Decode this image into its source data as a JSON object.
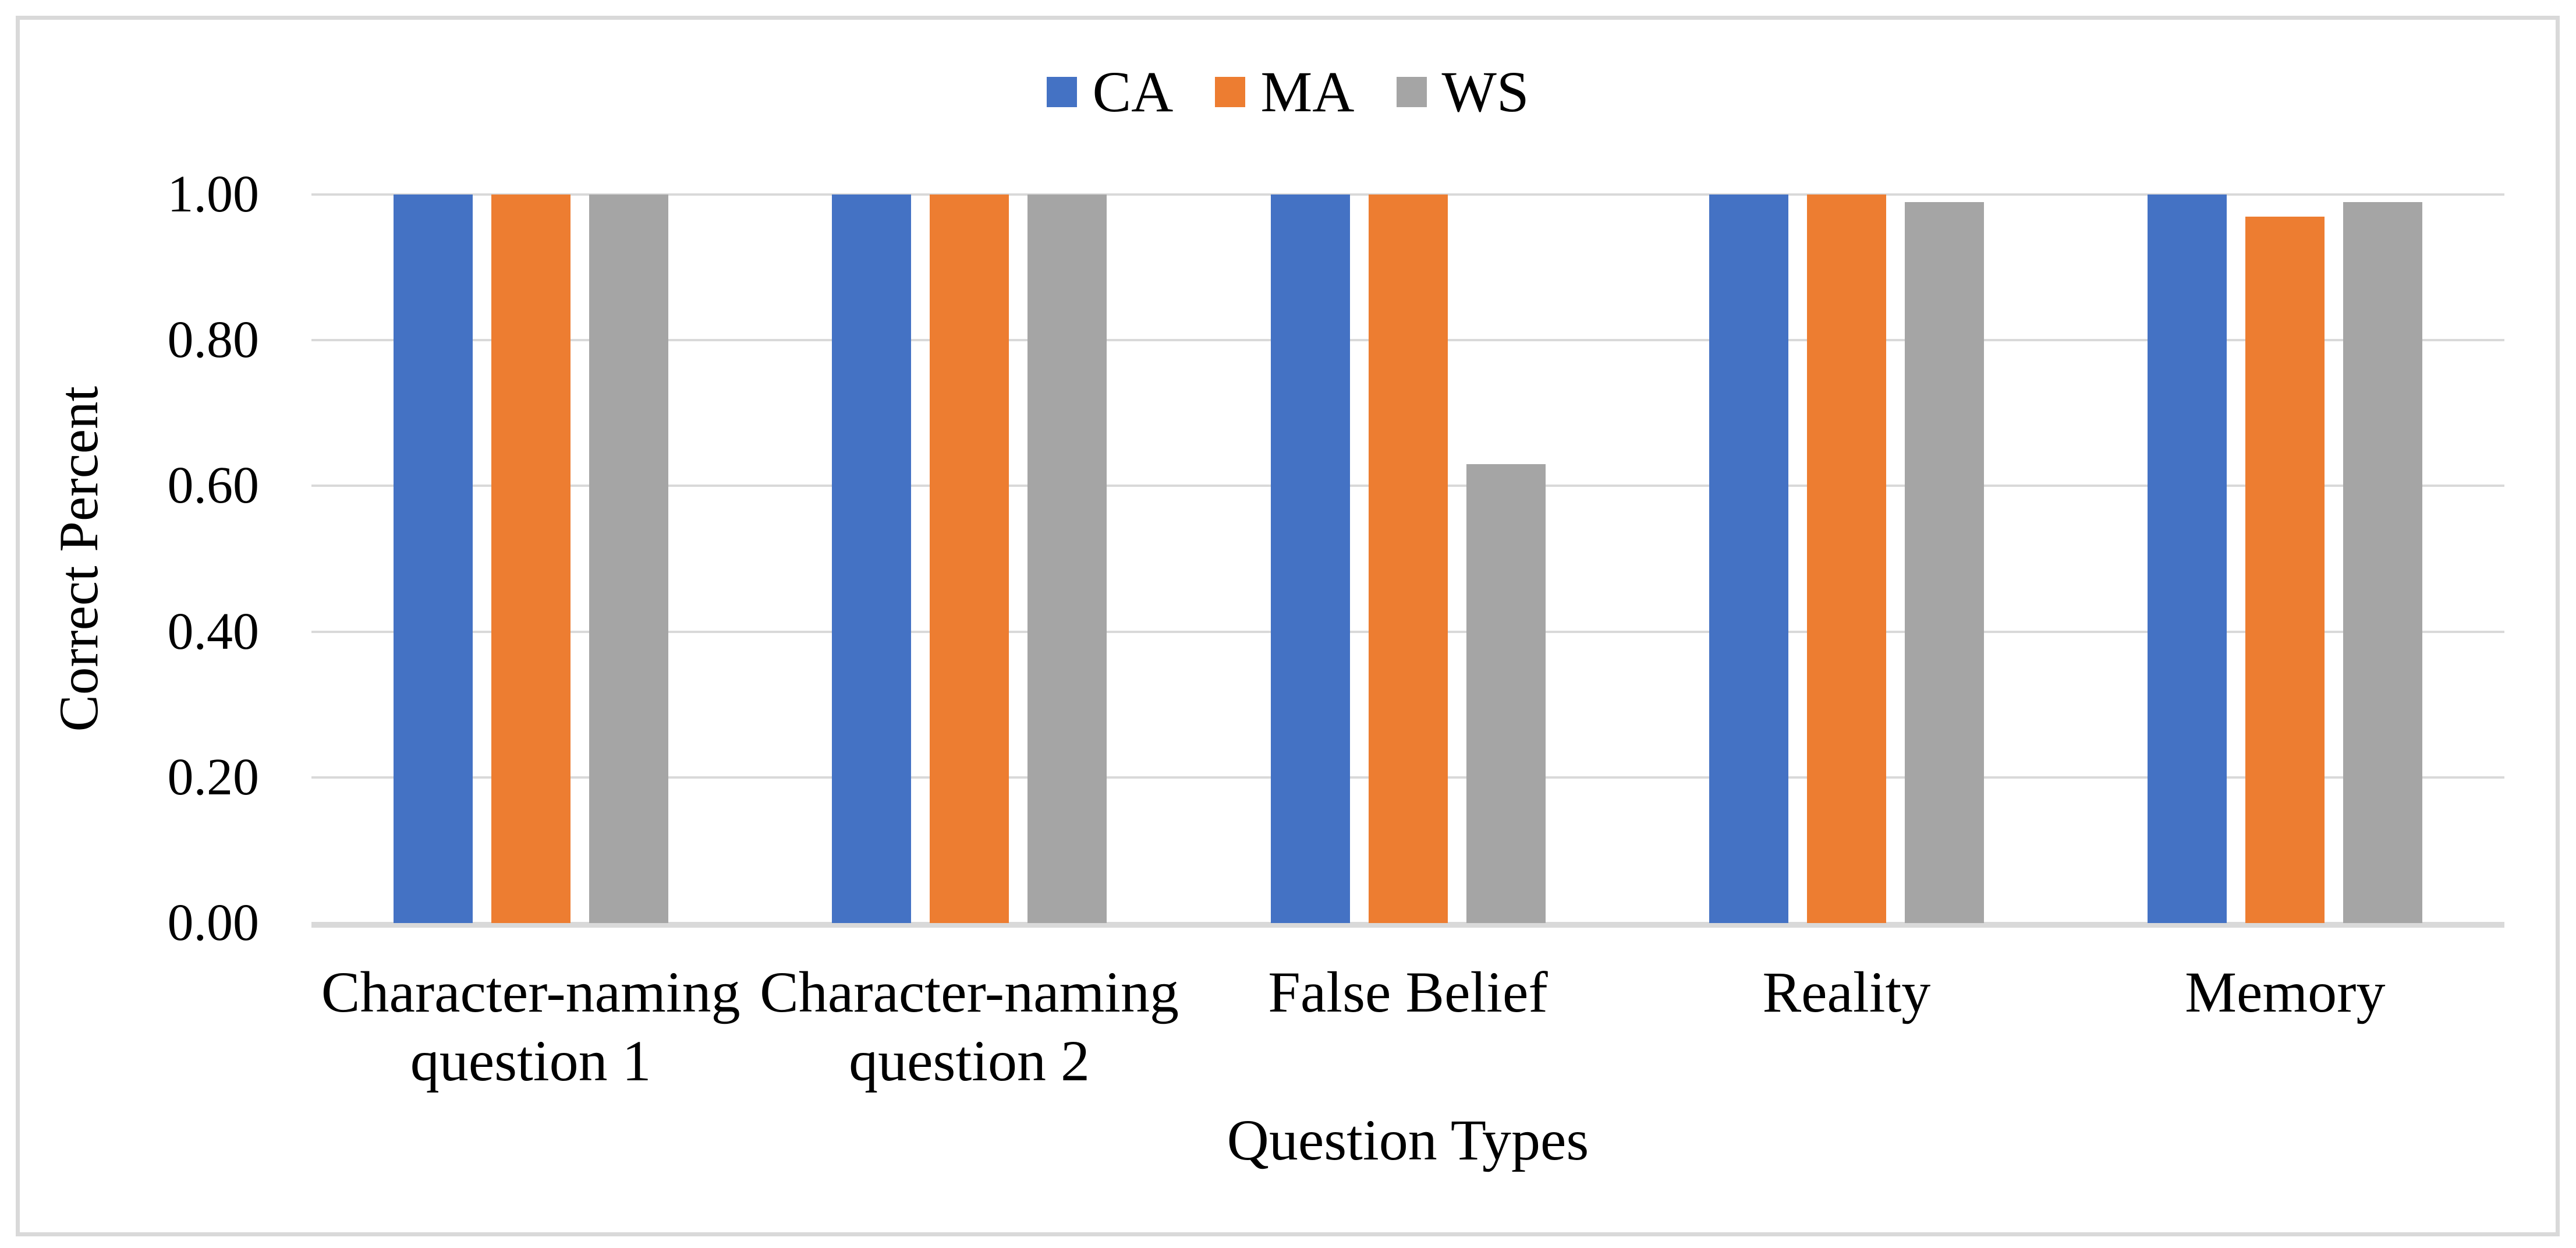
{
  "chart_data": {
    "type": "bar",
    "title": "",
    "categories": [
      "Character-naming question 1",
      "Character-naming question 2",
      "False Belief",
      "Reality",
      "Memory"
    ],
    "series": [
      {
        "name": "CA",
        "color": "#4472C4",
        "values": [
          1.0,
          1.0,
          1.0,
          1.0,
          1.0
        ]
      },
      {
        "name": "MA",
        "color": "#ED7D31",
        "values": [
          1.0,
          1.0,
          1.0,
          1.0,
          0.97
        ]
      },
      {
        "name": "WS",
        "color": "#A5A5A5",
        "values": [
          1.0,
          1.0,
          0.63,
          0.99,
          0.99
        ]
      }
    ],
    "xlabel": "Question Types",
    "ylabel": "Correct Percent",
    "ylim": [
      0,
      1
    ],
    "ytick_step": 0.2,
    "ytick_labels": [
      "0.00",
      "0.20",
      "0.40",
      "0.60",
      "0.80",
      "1.00"
    ],
    "grid": true,
    "legend_position": "top",
    "colors": {
      "gridline": "#D9D9D9",
      "axis_line": "#D9D9D9",
      "frame_border": "#D9D9D9",
      "background": "#FFFFFF",
      "text": "#000000"
    }
  }
}
